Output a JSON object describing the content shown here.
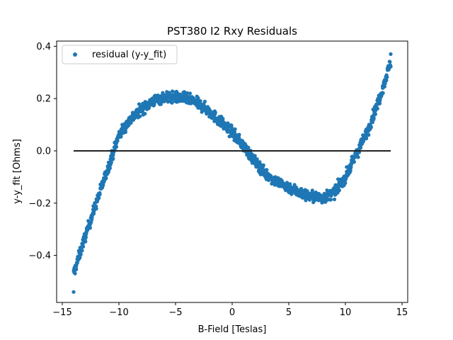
{
  "chart_data": {
    "type": "scatter",
    "title": "PST380 I2 Rxy Residuals",
    "xlabel": "B-Field [Teslas]",
    "ylabel": "y-y_fit [Ohms]",
    "xlim": [
      -15.5,
      15.5
    ],
    "ylim": [
      -0.58,
      0.42
    ],
    "x_ticks": [
      -15,
      -10,
      -5,
      0,
      5,
      10,
      15
    ],
    "x_tick_labels": [
      "−15",
      "−10",
      "−5",
      "0",
      "5",
      "10",
      "15"
    ],
    "y_ticks": [
      -0.4,
      -0.2,
      0.0,
      0.2,
      0.4
    ],
    "y_tick_labels": [
      "−0.4",
      "−0.2",
      "0.0",
      "0.2",
      "0.4"
    ],
    "grid": false,
    "legend_placement": "top-left",
    "series": [
      {
        "name": "residual (y-y_fit)",
        "color": "#1f77b4",
        "marker": "circle",
        "x_range": [
          -14,
          14
        ],
        "curve_samples": {
          "x": [
            -14,
            -13,
            -12,
            -11,
            -10,
            -9,
            -8,
            -7,
            -6,
            -5,
            -4,
            -3,
            -2,
            -1,
            0,
            1,
            2,
            3,
            4,
            5,
            6,
            7,
            8,
            9,
            10,
            11,
            12,
            13,
            14
          ],
          "y": [
            -0.47,
            -0.33,
            -0.2,
            -0.07,
            0.06,
            0.12,
            0.16,
            0.19,
            0.205,
            0.205,
            0.2,
            0.18,
            0.15,
            0.11,
            0.07,
            0.02,
            -0.04,
            -0.09,
            -0.12,
            -0.14,
            -0.16,
            -0.175,
            -0.18,
            -0.16,
            -0.1,
            -0.01,
            0.08,
            0.2,
            0.34
          ]
        },
        "scatter_band": 0.02,
        "min_point": [
          -14,
          -0.54
        ],
        "max_point": [
          14,
          0.37
        ]
      },
      {
        "name": "",
        "type": "line",
        "color": "#222222",
        "x": [
          -14,
          14
        ],
        "y": [
          0.0,
          0.0
        ]
      }
    ]
  }
}
